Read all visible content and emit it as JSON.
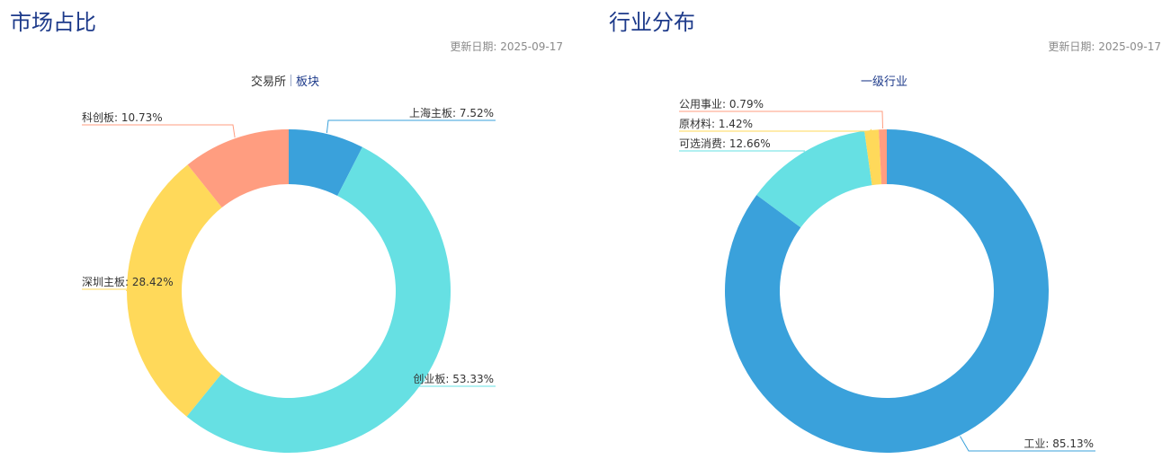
{
  "left": {
    "title": "市场占比",
    "updated": "更新日期: 2025-09-17",
    "tabs": [
      "交易所",
      "板块"
    ]
  },
  "right": {
    "title": "行业分布",
    "updated": "更新日期: 2025-09-17",
    "tabs": [
      "一级行业"
    ]
  },
  "chart_data": [
    {
      "type": "pie",
      "style": "donut",
      "categories": [
        "上海主板",
        "创业板",
        "深圳主板",
        "科创板"
      ],
      "values": [
        7.52,
        53.33,
        28.42,
        10.73
      ],
      "labels": [
        "上海主板: 7.52%",
        "创业板: 53.33%",
        "深圳主板: 28.42%",
        "科创板: 10.73%"
      ],
      "colors": [
        "#3aa1db",
        "#66e0e3",
        "#ffd95a",
        "#ff9d80"
      ],
      "legend": "none"
    },
    {
      "type": "pie",
      "style": "donut",
      "categories": [
        "工业",
        "可选消费",
        "原材料",
        "公用事业"
      ],
      "values": [
        85.13,
        12.66,
        1.42,
        0.79
      ],
      "labels": [
        "工业: 85.13%",
        "可选消费: 12.66%",
        "原材料: 1.42%",
        "公用事业: 0.79%"
      ],
      "colors": [
        "#3aa1db",
        "#66e0e3",
        "#ffd95a",
        "#ff9d80"
      ],
      "legend": "none"
    }
  ]
}
